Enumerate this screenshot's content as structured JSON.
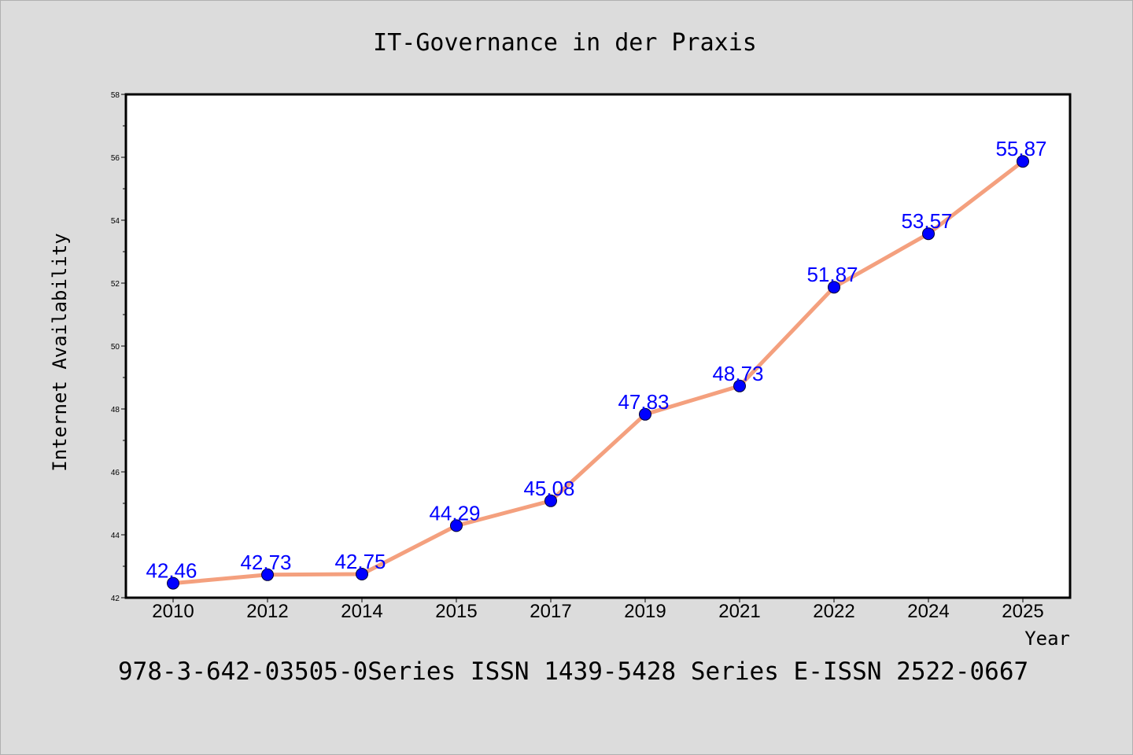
{
  "colors": {
    "background": "#dcdcdc",
    "plot_background": "#ffffff",
    "line": "#f4a07e",
    "marker": "#0000ff",
    "data_label": "#0000ff"
  },
  "footer_text": "978-3-642-03505-0Series ISSN 1439-5428 Series E-ISSN 2522-0667",
  "chart_data": {
    "type": "line",
    "title": "IT-Governance in der Praxis",
    "xlabel": "Year",
    "ylabel": "Internet Availability",
    "categories": [
      "2010",
      "2012",
      "2014",
      "2015",
      "2017",
      "2019",
      "2021",
      "2022",
      "2024",
      "2025"
    ],
    "series": [
      {
        "values": [
          42.46,
          42.73,
          42.75,
          44.29,
          45.08,
          47.83,
          48.73,
          51.87,
          53.57,
          55.87
        ],
        "data_labels": [
          "42.46",
          "42.73",
          "42.75",
          "44.29",
          "45.08",
          "47.83",
          "48.73",
          "51.87",
          "53.57",
          "55.87"
        ]
      }
    ],
    "ylim": [
      42,
      58
    ],
    "yticks": [
      42,
      44,
      46,
      48,
      50,
      52,
      54,
      56,
      58
    ],
    "grid": false,
    "legend": "none"
  }
}
